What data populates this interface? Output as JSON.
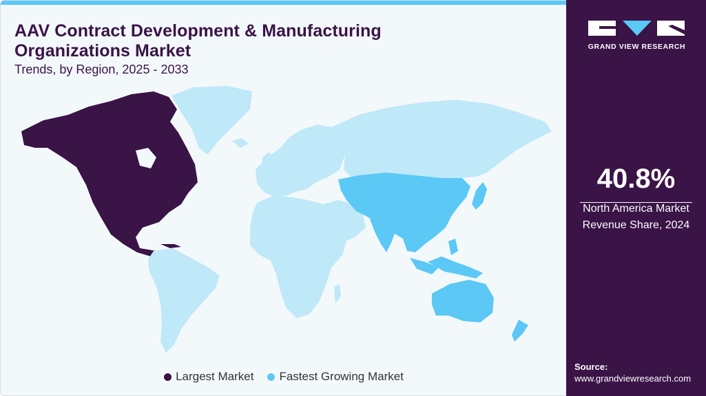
{
  "header": {
    "title": "AAV Contract Development & Manufacturing Organizations Market",
    "subtitle": "Trends, by Region, 2025 - 2033"
  },
  "legend": {
    "items": [
      {
        "label": "Largest Market",
        "color": "#3a1347"
      },
      {
        "label": "Fastest Growing Market",
        "color": "#5bc8f5"
      }
    ]
  },
  "map": {
    "largest_market_region": "North America",
    "fastest_growing_region": "Asia Pacific",
    "colors": {
      "largest": "#3a1347",
      "fastest": "#5bc8f5",
      "other": "#bfe8f8"
    }
  },
  "sidebar": {
    "brand": "GRAND VIEW RESEARCH",
    "stat_value": "40.8%",
    "stat_label_line1": "North America Market",
    "stat_label_line2": "Revenue Share, 2024",
    "source_label": "Source:",
    "source_url": "www.grandviewresearch.com"
  }
}
